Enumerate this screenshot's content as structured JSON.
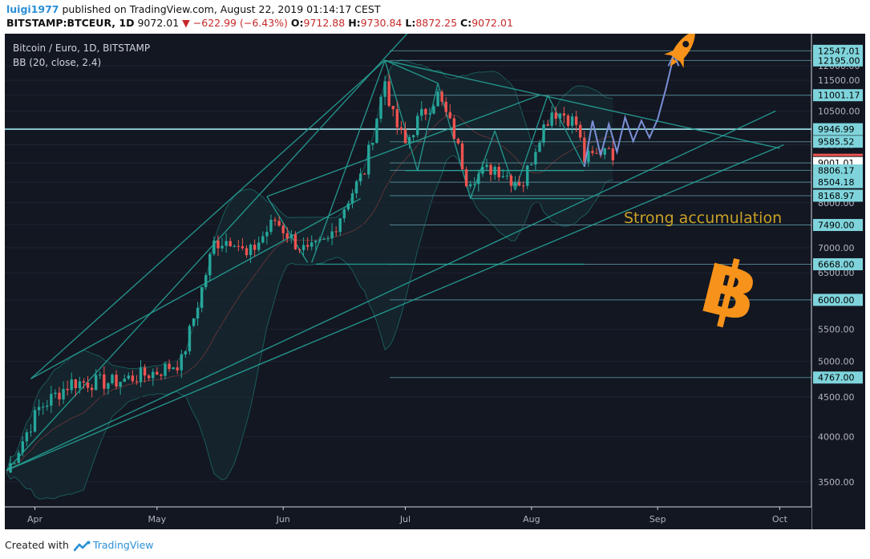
{
  "header": {
    "user": "luigi1977",
    "published": "published on TradingView.com, August 22, 2019 01:14:17 CEST",
    "symbol": "BITSTAMP:BTCEUR, 1D",
    "last": "9072.01",
    "change": "−622.99 (−6.43%)",
    "o_label": "O:",
    "o": "9712.88",
    "h_label": "H:",
    "h": "9730.84",
    "l_label": "L:",
    "l": "8872.25",
    "c_label": "C:",
    "c": "9072.01"
  },
  "legend": {
    "title": "Bitcoin / Euro, 1D, BITSTAMP",
    "indicator": "BB (20, close, 2.4)"
  },
  "annotation": {
    "text": "Strong accumulation",
    "color": "#c9a227"
  },
  "footer": {
    "created_with": "Created with",
    "brand": "TradingView"
  },
  "colors": {
    "background": "#131722",
    "up": "#26a69a",
    "down": "#ef5350",
    "trendline": "#26a69a",
    "horizontal": "#7fd4dc",
    "projection": "#7b8fd6",
    "bitcoin": "#f7931a",
    "rocket": "#f7931a"
  },
  "chart_data": {
    "type": "candlestick",
    "x_axis": {
      "ticks": [
        "Apr",
        "May",
        "Jun",
        "Jul",
        "Aug",
        "Sep",
        "Oct"
      ]
    },
    "y_axis": {
      "scale": "log",
      "ticks": [
        3500,
        4000,
        4500,
        5000,
        5500,
        6000,
        6500,
        7000,
        7500,
        8000,
        8500,
        9000,
        9500,
        10000,
        10500,
        11000,
        11500,
        12000
      ],
      "tick_labels": [
        "3500.00",
        "4000.00",
        "4500.00",
        "5000.00",
        "5500.00",
        "6000.00",
        "6500.00",
        "7000.00",
        "7500.00",
        "8000.00",
        "8500.00",
        "9000.00",
        "9500.00",
        "10000.00",
        "10500.00",
        "11000.00",
        "11500.00",
        "12000.00"
      ],
      "range": [
        3250,
        13200
      ]
    },
    "levels": [
      {
        "value": 12547.01,
        "label": "12547.01"
      },
      {
        "value": 12195.0,
        "label": "12195.00"
      },
      {
        "value": 11001.17,
        "label": "11001.17"
      },
      {
        "value": 9946.99,
        "label": "9946.99"
      },
      {
        "value": 9585.52,
        "label": "9585.52"
      },
      {
        "value": 9001.01,
        "label": "9001.01"
      },
      {
        "value": 8806.17,
        "label": "8806.17"
      },
      {
        "value": 8504.18,
        "label": "8504.18"
      },
      {
        "value": 8168.97,
        "label": "8168.97"
      },
      {
        "value": 7490.0,
        "label": "7490.00"
      },
      {
        "value": 6668.0,
        "label": "6668.00"
      },
      {
        "value": 6000.0,
        "label": "6000.00"
      },
      {
        "value": 4767.0,
        "label": "4767.00"
      }
    ],
    "close_path": [
      [
        "2019-03-25",
        3600
      ],
      [
        "2019-04-02",
        4350
      ],
      [
        "2019-04-10",
        4700
      ],
      [
        "2019-04-20",
        4700
      ],
      [
        "2019-05-01",
        4850
      ],
      [
        "2019-05-07",
        5000
      ],
      [
        "2019-05-12",
        6200
      ],
      [
        "2019-05-15",
        7100
      ],
      [
        "2019-05-20",
        7200
      ],
      [
        "2019-05-23",
        6800
      ],
      [
        "2019-05-30",
        7600
      ],
      [
        "2019-06-04",
        7100
      ],
      [
        "2019-06-07",
        6900
      ],
      [
        "2019-06-12",
        7150
      ],
      [
        "2019-06-17",
        8100
      ],
      [
        "2019-06-21",
        8800
      ],
      [
        "2019-06-26",
        11500
      ],
      [
        "2019-06-28",
        10300
      ],
      [
        "2019-07-01",
        9500
      ],
      [
        "2019-07-04",
        10200
      ],
      [
        "2019-07-09",
        11000
      ],
      [
        "2019-07-13",
        9800
      ],
      [
        "2019-07-16",
        8600
      ],
      [
        "2019-07-19",
        8700
      ],
      [
        "2019-07-23",
        8900
      ],
      [
        "2019-07-27",
        8600
      ],
      [
        "2019-07-30",
        8500
      ],
      [
        "2019-08-03",
        9800
      ],
      [
        "2019-08-06",
        10500
      ],
      [
        "2019-08-09",
        10400
      ],
      [
        "2019-08-12",
        10100
      ],
      [
        "2019-08-14",
        9100
      ],
      [
        "2019-08-17",
        9200
      ],
      [
        "2019-08-20",
        9600
      ],
      [
        "2019-08-21",
        9072
      ]
    ],
    "last_value": 9072.01
  }
}
